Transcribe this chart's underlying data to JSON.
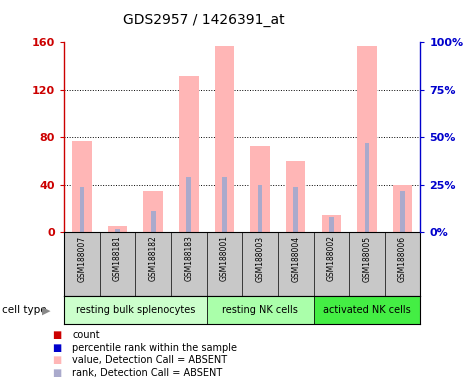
{
  "title": "GDS2957 / 1426391_at",
  "samples": [
    "GSM188007",
    "GSM188181",
    "GSM188182",
    "GSM188183",
    "GSM188001",
    "GSM188003",
    "GSM188004",
    "GSM188002",
    "GSM188005",
    "GSM188006"
  ],
  "pink_values": [
    77,
    5,
    35,
    132,
    157,
    73,
    60,
    15,
    157,
    40
  ],
  "blue_pct": [
    24,
    2,
    11,
    29,
    29,
    25,
    24,
    8,
    47,
    22
  ],
  "pink_color": "#FFB6B6",
  "blue_color": "#AAAACC",
  "ylim_left": [
    0,
    160
  ],
  "ylim_right": [
    0,
    100
  ],
  "yticks_left": [
    0,
    40,
    80,
    120,
    160
  ],
  "ytick_labels_left": [
    "0",
    "40",
    "80",
    "120",
    "160"
  ],
  "yticks_right_vals": [
    0,
    25,
    50,
    75,
    100
  ],
  "ytick_labels_right": [
    "0%",
    "25%",
    "50%",
    "75%",
    "100%"
  ],
  "cell_groups": [
    {
      "label": "resting bulk splenocytes",
      "color": "#CCFFCC",
      "indices": [
        0,
        1,
        2,
        3
      ]
    },
    {
      "label": "resting NK cells",
      "color": "#AAFFAA",
      "indices": [
        4,
        5,
        6
      ]
    },
    {
      "label": "activated NK cells",
      "color": "#44EE44",
      "indices": [
        7,
        8,
        9
      ]
    }
  ],
  "cell_type_label": "cell type",
  "legend_items": [
    {
      "color": "#CC0000",
      "label": "count"
    },
    {
      "color": "#0000CC",
      "label": "percentile rank within the sample"
    },
    {
      "color": "#FFB6B6",
      "label": "value, Detection Call = ABSENT"
    },
    {
      "color": "#AAAACC",
      "label": "rank, Detection Call = ABSENT"
    }
  ],
  "left_axis_color": "#CC0000",
  "right_axis_color": "#0000CC",
  "label_bg_color": "#C8C8C8",
  "plot_border_color": "#888888"
}
